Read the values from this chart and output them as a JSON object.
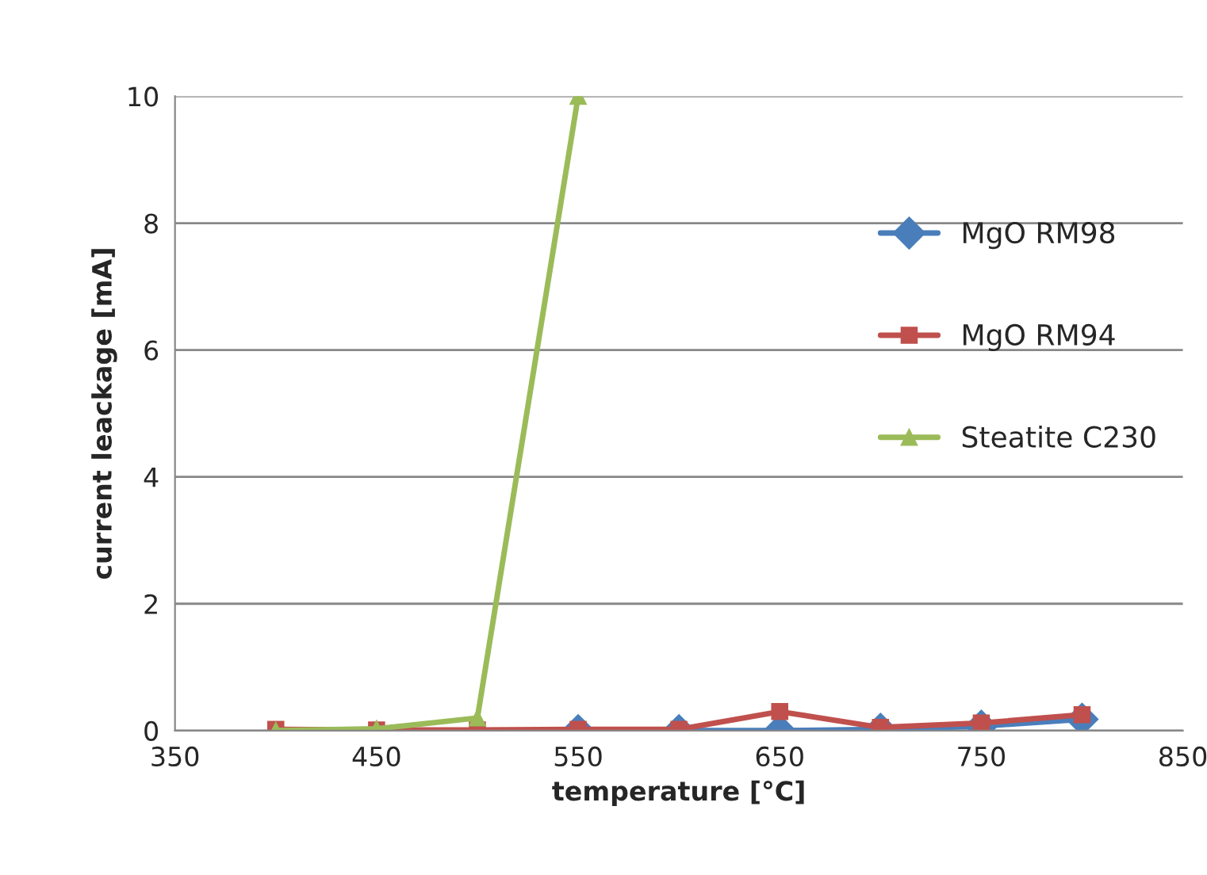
{
  "chart_data": {
    "type": "line",
    "xlabel": "temperature [°C]",
    "ylabel": "current leackage [mA]",
    "xlim": [
      350,
      850
    ],
    "xticks": [
      350,
      450,
      550,
      650,
      750,
      850
    ],
    "ylim": [
      0,
      10
    ],
    "yticks": [
      0,
      2,
      4,
      6,
      8,
      10
    ],
    "grid": "y",
    "legend": "right",
    "series": [
      {
        "name": "MgO RM98",
        "color": "#4a7ebb",
        "marker": "diamond",
        "x": [
          550,
          600,
          650,
          700,
          750,
          800
        ],
        "values": [
          0.0,
          0.0,
          0.0,
          0.02,
          0.07,
          0.18
        ]
      },
      {
        "name": "MgO RM94",
        "color": "#c0504d",
        "marker": "square",
        "x": [
          400,
          450,
          500,
          550,
          600,
          650,
          700,
          750,
          800
        ],
        "values": [
          0.02,
          0.01,
          0.01,
          0.02,
          0.02,
          0.3,
          0.05,
          0.12,
          0.25
        ]
      },
      {
        "name": "Steatite C230",
        "color": "#9bbb59",
        "marker": "triangle",
        "x": [
          400,
          450,
          500,
          550
        ],
        "values": [
          0.0,
          0.03,
          0.2,
          10
        ]
      }
    ]
  }
}
